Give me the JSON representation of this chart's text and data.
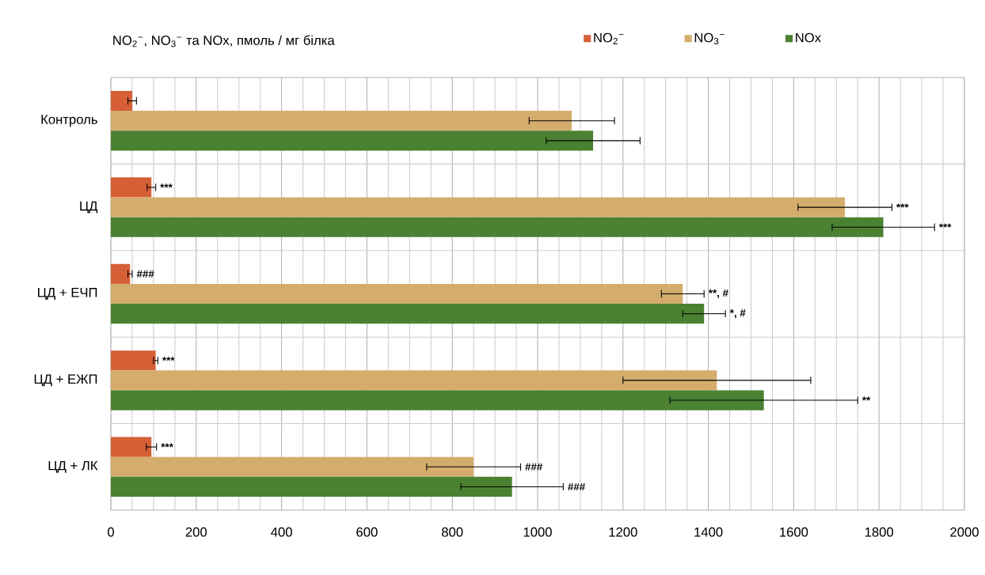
{
  "chart_data": {
    "type": "bar",
    "orientation": "horizontal",
    "title": "NO$_{2}$$^{−}$, NO$_{3}$$^{−}$ та NOx, пмоль / мг білка",
    "categories": [
      "Контроль",
      "ЦД",
      "ЦД + ЕЧП",
      "ЦД + ЕЖП",
      "ЦД + ЛК"
    ],
    "series": [
      {
        "name": "NO$_{2}$$^{−}$",
        "color": "#d65f36",
        "values": [
          50,
          95,
          45,
          105,
          95
        ],
        "errors": [
          10,
          10,
          5,
          5,
          12
        ]
      },
      {
        "name": "NO$_{3}$$^{−}$",
        "color": "#d4ad6d",
        "values": [
          1080,
          1720,
          1340,
          1420,
          850
        ],
        "errors": [
          100,
          110,
          50,
          220,
          110
        ]
      },
      {
        "name": "NOx",
        "color": "#4b8232",
        "values": [
          1130,
          1810,
          1390,
          1530,
          940
        ],
        "errors": [
          110,
          120,
          50,
          220,
          120
        ]
      }
    ],
    "annotations": [
      "***",
      "***",
      "***",
      "###",
      "**, #",
      "*, #",
      "***",
      "**",
      "***",
      "###",
      "###"
    ],
    "xlim": [
      0,
      2000
    ],
    "xticks": [
      0,
      200,
      400,
      600,
      800,
      1000,
      1200,
      1400,
      1600,
      1800,
      2000
    ],
    "grid": true,
    "legend": "top"
  }
}
